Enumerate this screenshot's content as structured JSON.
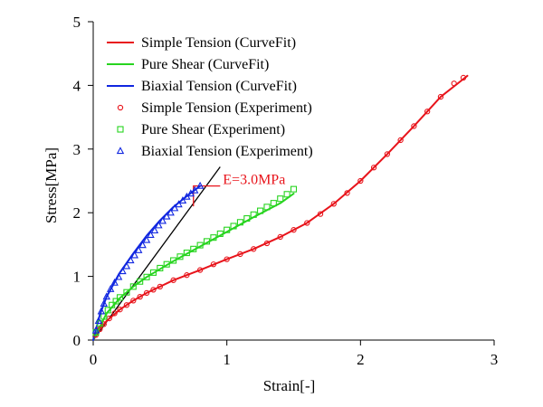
{
  "chart_data": {
    "type": "line",
    "title": "",
    "xlabel": "Strain[-]",
    "ylabel": "Stress[MPa]",
    "xlim": [
      0,
      3
    ],
    "ylim": [
      0,
      5
    ],
    "xticks": [
      0,
      1,
      2,
      3
    ],
    "yticks": [
      0,
      1,
      2,
      3,
      4,
      5
    ],
    "legend_position": "top-left",
    "series": [
      {
        "name": "Simple Tension (CurveFit)",
        "kind": "line",
        "color": "#e8141b",
        "x": [
          0,
          0.05,
          0.1,
          0.2,
          0.3,
          0.4,
          0.5,
          0.6,
          0.8,
          1.0,
          1.2,
          1.4,
          1.6,
          1.8,
          2.0,
          2.2,
          2.4,
          2.6,
          2.8
        ],
        "y": [
          0,
          0.17,
          0.3,
          0.48,
          0.62,
          0.74,
          0.84,
          0.94,
          1.1,
          1.27,
          1.43,
          1.62,
          1.84,
          2.14,
          2.5,
          2.92,
          3.36,
          3.82,
          4.15
        ]
      },
      {
        "name": "Pure Shear (CurveFit)",
        "kind": "line",
        "color": "#27d41f",
        "x": [
          0,
          0.1,
          0.2,
          0.3,
          0.4,
          0.6,
          0.8,
          1.0,
          1.2,
          1.4,
          1.5
        ],
        "y": [
          0,
          0.42,
          0.66,
          0.84,
          0.99,
          1.24,
          1.47,
          1.7,
          1.93,
          2.15,
          2.3
        ]
      },
      {
        "name": "Biaxial Tension (CurveFit)",
        "kind": "line",
        "color": "#1026e0",
        "x": [
          0,
          0.05,
          0.1,
          0.2,
          0.3,
          0.4,
          0.5,
          0.6,
          0.7,
          0.8
        ],
        "y": [
          0,
          0.4,
          0.68,
          1.06,
          1.36,
          1.64,
          1.88,
          2.09,
          2.26,
          2.42
        ]
      },
      {
        "name": "Simple Tension (Experiment)",
        "kind": "scatter",
        "marker": "circle",
        "color": "#e8141b",
        "x": [
          0.02,
          0.05,
          0.08,
          0.12,
          0.16,
          0.2,
          0.25,
          0.3,
          0.35,
          0.4,
          0.45,
          0.5,
          0.6,
          0.7,
          0.8,
          0.9,
          1.0,
          1.1,
          1.2,
          1.3,
          1.4,
          1.5,
          1.6,
          1.7,
          1.8,
          1.9,
          2.0,
          2.1,
          2.2,
          2.3,
          2.4,
          2.5,
          2.6,
          2.7,
          2.77
        ],
        "y": [
          0.08,
          0.17,
          0.25,
          0.34,
          0.42,
          0.48,
          0.55,
          0.62,
          0.68,
          0.74,
          0.79,
          0.84,
          0.94,
          1.02,
          1.1,
          1.19,
          1.27,
          1.35,
          1.43,
          1.52,
          1.62,
          1.73,
          1.84,
          1.98,
          2.14,
          2.31,
          2.5,
          2.71,
          2.92,
          3.14,
          3.36,
          3.59,
          3.82,
          4.03,
          4.12
        ]
      },
      {
        "name": "Pure Shear (Experiment)",
        "kind": "scatter",
        "marker": "square",
        "color": "#27d41f",
        "x": [
          0.02,
          0.05,
          0.08,
          0.11,
          0.14,
          0.17,
          0.2,
          0.25,
          0.3,
          0.35,
          0.4,
          0.45,
          0.5,
          0.55,
          0.6,
          0.65,
          0.7,
          0.75,
          0.8,
          0.85,
          0.9,
          0.95,
          1.0,
          1.05,
          1.1,
          1.15,
          1.2,
          1.25,
          1.3,
          1.35,
          1.4,
          1.45,
          1.5
        ],
        "y": [
          0.12,
          0.26,
          0.37,
          0.47,
          0.55,
          0.61,
          0.67,
          0.75,
          0.84,
          0.92,
          0.99,
          1.06,
          1.13,
          1.19,
          1.25,
          1.31,
          1.37,
          1.43,
          1.49,
          1.55,
          1.61,
          1.67,
          1.73,
          1.79,
          1.85,
          1.91,
          1.97,
          2.03,
          2.09,
          2.15,
          2.22,
          2.29,
          2.37
        ]
      },
      {
        "name": "Biaxial Tension (Experiment)",
        "kind": "scatter",
        "marker": "triangle",
        "color": "#1026e0",
        "x": [
          0.02,
          0.04,
          0.06,
          0.08,
          0.1,
          0.13,
          0.16,
          0.19,
          0.22,
          0.25,
          0.28,
          0.31,
          0.34,
          0.37,
          0.4,
          0.43,
          0.46,
          0.49,
          0.52,
          0.55,
          0.58,
          0.61,
          0.64,
          0.67,
          0.7,
          0.73,
          0.76,
          0.8
        ],
        "y": [
          0.15,
          0.3,
          0.45,
          0.57,
          0.68,
          0.8,
          0.9,
          0.99,
          1.08,
          1.16,
          1.25,
          1.33,
          1.41,
          1.49,
          1.57,
          1.65,
          1.72,
          1.8,
          1.87,
          1.94,
          2.0,
          2.07,
          2.13,
          2.19,
          2.25,
          2.3,
          2.35,
          2.42
        ]
      }
    ],
    "annotations": [
      {
        "type": "reference-line",
        "color": "#000000",
        "x": [
          0,
          0.95
        ],
        "y": [
          0,
          2.72
        ]
      },
      {
        "type": "slope-triangle",
        "color": "#e8141b",
        "text": "E=3.0MPa",
        "x": [
          0.75,
          0.75,
          0.95
        ],
        "y": [
          2.1,
          2.42,
          2.42
        ]
      }
    ]
  }
}
